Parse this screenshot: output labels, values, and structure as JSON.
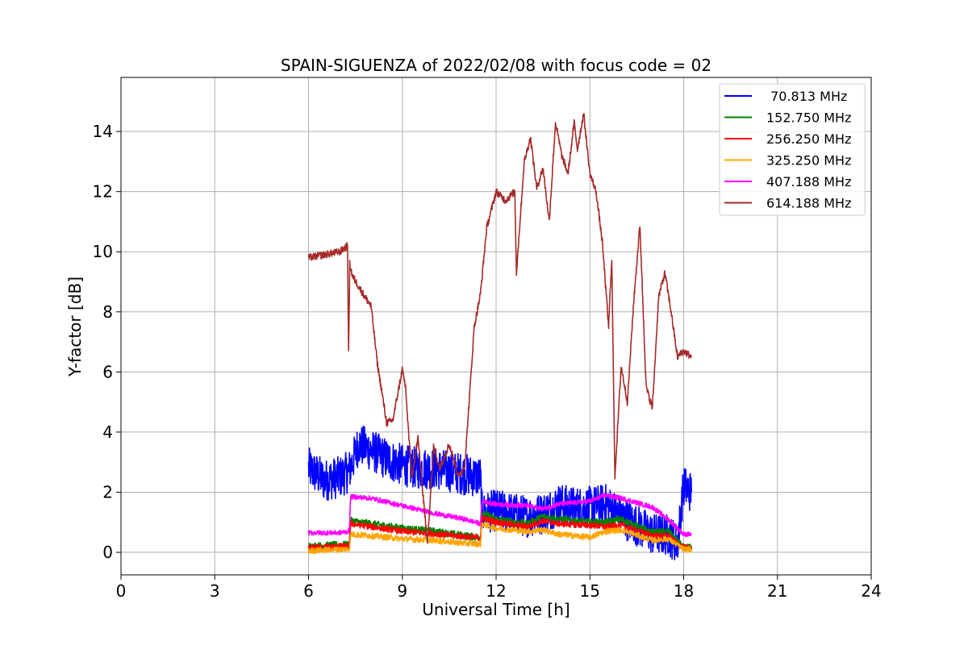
{
  "chart_data": {
    "type": "line",
    "title": "SPAIN-SIGUENZA of 2022/02/08 with focus code = 02",
    "xlabel": "Universal Time [h]",
    "ylabel": "Y-factor [dB]",
    "xlim": [
      0,
      24
    ],
    "ylim": [
      -0.75,
      15.8
    ],
    "xticks": [
      0,
      3,
      6,
      9,
      12,
      15,
      18,
      21,
      24
    ],
    "xtick_labels": [
      "0",
      "3",
      "6",
      "9",
      "12",
      "15",
      "18",
      "21",
      "24"
    ],
    "yticks": [
      0,
      2,
      4,
      6,
      8,
      10,
      12,
      14
    ],
    "ytick_labels": [
      "0",
      "2",
      "4",
      "6",
      "8",
      "10",
      "12",
      "14"
    ],
    "grid": true,
    "legend_position": "top-right",
    "series": [
      {
        "name": " 70.813 MHz",
        "color": "#0000ff",
        "noise": 0.7,
        "x": [
          6.0,
          6.5,
          7.0,
          7.3,
          7.6,
          8.0,
          8.5,
          9.0,
          9.5,
          10.0,
          10.5,
          11.0,
          11.5,
          11.55,
          12.0,
          12.5,
          13.0,
          13.5,
          14.0,
          14.5,
          15.0,
          15.5,
          16.0,
          16.5,
          17.0,
          17.5,
          17.8,
          18.0,
          18.25
        ],
        "y": [
          2.8,
          2.4,
          2.5,
          2.7,
          3.6,
          3.4,
          3.1,
          2.9,
          2.8,
          2.8,
          2.7,
          2.6,
          2.5,
          1.3,
          1.4,
          1.3,
          1.2,
          1.3,
          1.6,
          1.5,
          1.5,
          1.6,
          1.2,
          0.9,
          0.6,
          0.6,
          0.3,
          2.2,
          2.0
        ]
      },
      {
        "name": "152.750 MHz",
        "color": "#008000",
        "noise": 0.12,
        "x": [
          6.0,
          7.0,
          7.3,
          7.35,
          8.0,
          9.0,
          10.0,
          11.0,
          11.5,
          11.55,
          12.0,
          13.0,
          13.5,
          14.0,
          15.0,
          15.5,
          16.0,
          17.0,
          17.5,
          18.0,
          18.25
        ],
        "y": [
          0.2,
          0.25,
          0.25,
          1.05,
          0.95,
          0.8,
          0.7,
          0.55,
          0.5,
          1.3,
          1.1,
          0.95,
          1.2,
          1.1,
          1.0,
          1.0,
          1.1,
          0.65,
          0.7,
          0.15,
          0.15
        ]
      },
      {
        "name": "256.250 MHz",
        "color": "#ff0000",
        "noise": 0.1,
        "x": [
          6.0,
          7.0,
          7.3,
          7.35,
          8.0,
          9.0,
          10.0,
          11.0,
          11.5,
          11.55,
          12.0,
          13.0,
          13.5,
          14.0,
          15.0,
          15.5,
          16.0,
          17.0,
          17.5,
          18.0,
          18.25
        ],
        "y": [
          0.15,
          0.2,
          0.2,
          0.95,
          0.85,
          0.7,
          0.62,
          0.52,
          0.48,
          1.15,
          1.0,
          0.85,
          1.05,
          0.95,
          0.9,
          0.85,
          0.9,
          0.55,
          0.55,
          0.15,
          0.15
        ]
      },
      {
        "name": "325.250 MHz",
        "color": "#ffa500",
        "noise": 0.1,
        "x": [
          6.0,
          7.0,
          7.3,
          7.35,
          8.0,
          9.0,
          10.0,
          11.0,
          11.5,
          11.55,
          12.0,
          13.0,
          13.5,
          14.0,
          15.0,
          15.5,
          16.0,
          17.0,
          17.5,
          18.0,
          18.25
        ],
        "y": [
          0.05,
          0.1,
          0.1,
          0.6,
          0.55,
          0.45,
          0.4,
          0.3,
          0.28,
          0.95,
          0.8,
          0.7,
          0.75,
          0.6,
          0.5,
          0.7,
          0.75,
          0.4,
          0.45,
          0.1,
          0.1
        ]
      },
      {
        "name": "407.188 MHz",
        "color": "#ff00ff",
        "noise": 0.08,
        "x": [
          6.0,
          7.0,
          7.3,
          7.35,
          8.0,
          9.0,
          10.0,
          11.0,
          11.5,
          11.55,
          12.0,
          13.0,
          13.5,
          14.0,
          15.0,
          15.5,
          16.0,
          17.0,
          17.5,
          18.0,
          18.25
        ],
        "y": [
          0.65,
          0.65,
          0.7,
          1.85,
          1.8,
          1.55,
          1.3,
          1.1,
          0.95,
          1.7,
          1.6,
          1.55,
          1.45,
          1.6,
          1.7,
          1.9,
          1.8,
          1.5,
          1.1,
          0.6,
          0.6
        ]
      },
      {
        "name": "614.188 MHz",
        "color": "#a52a2a",
        "noise": 0.12,
        "x": [
          6.0,
          7.0,
          7.25,
          7.28,
          7.32,
          7.4,
          7.8,
          8.0,
          8.2,
          8.5,
          8.7,
          9.0,
          9.1,
          9.3,
          9.5,
          9.7,
          9.8,
          10.0,
          10.2,
          10.5,
          10.8,
          11.0,
          11.3,
          11.5,
          11.7,
          12.0,
          12.3,
          12.6,
          12.65,
          12.9,
          13.1,
          13.3,
          13.5,
          13.7,
          13.9,
          14.1,
          14.3,
          14.5,
          14.6,
          14.8,
          15.0,
          15.2,
          15.4,
          15.6,
          15.7,
          15.8,
          16.0,
          16.2,
          16.4,
          16.6,
          16.8,
          17.0,
          17.2,
          17.4,
          17.6,
          17.8,
          18.0,
          18.25
        ],
        "y": [
          9.8,
          10.0,
          10.2,
          6.6,
          9.6,
          9.2,
          8.5,
          8.2,
          6.3,
          4.3,
          4.4,
          6.1,
          5.5,
          2.5,
          3.8,
          1.5,
          0.3,
          3.5,
          2.8,
          3.6,
          2.5,
          2.9,
          7.5,
          8.6,
          10.8,
          12.0,
          11.7,
          12.0,
          9.3,
          13.0,
          13.8,
          12.1,
          12.8,
          11.0,
          14.3,
          13.2,
          12.6,
          14.3,
          13.4,
          14.6,
          12.6,
          12.0,
          10.3,
          7.5,
          9.8,
          2.5,
          6.2,
          5.0,
          8.3,
          10.9,
          5.5,
          4.8,
          8.5,
          9.3,
          8.0,
          6.5,
          6.7,
          6.5
        ]
      }
    ]
  }
}
